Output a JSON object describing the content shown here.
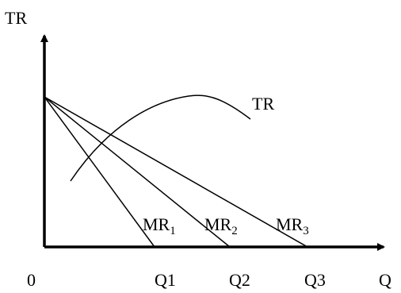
{
  "axes": {
    "y_label": "TR",
    "x_label": "Q",
    "origin_label": "0"
  },
  "curves": {
    "tr_label": "TR"
  },
  "mr_lines": [
    {
      "name": "MR",
      "sub": "1",
      "q_label": "Q1"
    },
    {
      "name": "MR",
      "sub": "2",
      "q_label": "Q2"
    },
    {
      "name": "MR",
      "sub": "3",
      "q_label": "Q3"
    }
  ],
  "colors": {
    "ink": "#000000",
    "background": "#ffffff"
  }
}
